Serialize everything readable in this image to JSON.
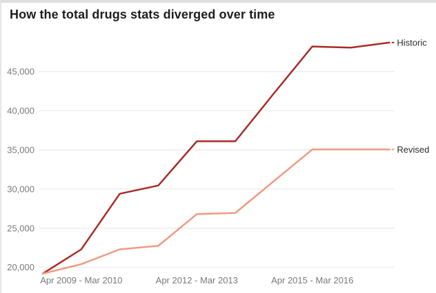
{
  "card": {
    "title": "How the total drugs stats diverged over time"
  },
  "chart_data": {
    "type": "line",
    "title": "How the total drugs stats diverged over time",
    "xlabel": "",
    "ylabel": "",
    "x_point_count": 10,
    "x_tick_labels": [
      "Apr 2009 - Mar 2010",
      "Apr 2012 - Mar 2013",
      "Apr 2015 - Mar 2016"
    ],
    "x_tick_indices": [
      1,
      4,
      7
    ],
    "series": [
      {
        "name": "Historic",
        "color": "#a92b24",
        "values": [
          19200,
          22300,
          29400,
          30450,
          36100,
          36100,
          42200,
          48200,
          48050,
          48700
        ]
      },
      {
        "name": "Revised",
        "color": "#ef9a80",
        "values": [
          19200,
          20400,
          22300,
          22750,
          26800,
          26950,
          31000,
          35050,
          35050,
          35050
        ]
      }
    ],
    "y_ticks": [
      20000,
      25000,
      30000,
      35000,
      40000,
      45000
    ],
    "y_tick_labels": [
      "20,000",
      "25,000",
      "30,000",
      "35,000",
      "40,000",
      "45,000"
    ],
    "ylim": [
      19000,
      49200
    ],
    "grid": "horizontal-only",
    "legend_position": "direct-labels-at-line-ends",
    "colors": {
      "grid": "#e9e9e9",
      "axis_text": "#797979",
      "title_text": "#1e1e1e",
      "series_label_text": "#2d2d2d",
      "background": "#ffffff",
      "card_border": "#dfdfdf"
    }
  }
}
